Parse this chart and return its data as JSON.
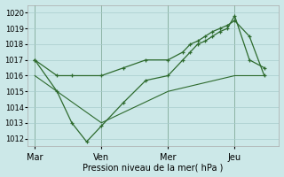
{
  "xlabel": "Pression niveau de la mer( hPa )",
  "background_color": "#cce8e8",
  "grid_color": "#a8cccc",
  "line_color": "#2d6a2d",
  "ylim": [
    1011.5,
    1020.5
  ],
  "yticks": [
    1012,
    1013,
    1014,
    1015,
    1016,
    1017,
    1018,
    1019,
    1020
  ],
  "day_labels": [
    "Mar",
    "Ven",
    "Mer",
    "Jeu"
  ],
  "day_positions": [
    0,
    9,
    18,
    27
  ],
  "xlim": [
    -1,
    33
  ],
  "series1_x": [
    0,
    3,
    5,
    9,
    12,
    15,
    18,
    20,
    21,
    22,
    23,
    24,
    25,
    26,
    27,
    29,
    31
  ],
  "series1_y": [
    1017.0,
    1016.0,
    1016.0,
    1016.0,
    1016.5,
    1017.0,
    1017.0,
    1017.5,
    1018.0,
    1018.2,
    1018.5,
    1018.8,
    1019.0,
    1019.2,
    1019.5,
    1018.5,
    1016.0
  ],
  "series2_x": [
    0,
    3,
    5,
    7,
    9,
    12,
    15,
    18,
    20,
    21,
    22,
    23,
    24,
    25,
    26,
    27,
    29,
    31
  ],
  "series2_y": [
    1017.0,
    1015.0,
    1013.0,
    1011.8,
    1012.8,
    1014.3,
    1015.7,
    1016.0,
    1017.0,
    1017.5,
    1018.0,
    1018.2,
    1018.5,
    1018.8,
    1019.0,
    1019.8,
    1017.0,
    1016.5
  ],
  "series3_x": [
    0,
    9,
    18,
    27,
    31
  ],
  "series3_y": [
    1016.0,
    1013.0,
    1015.0,
    1016.0,
    1016.0
  ]
}
